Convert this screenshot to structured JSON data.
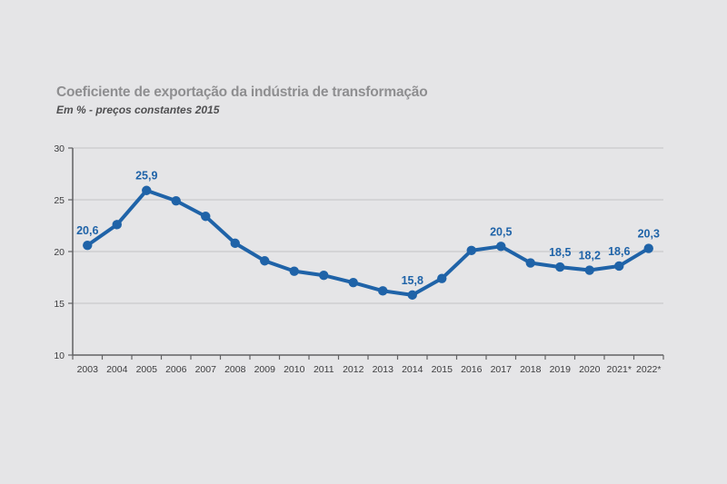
{
  "header": {
    "title": "Coeficiente de exportação da indústria de transformação",
    "subtitle": "Em % - preços constantes 2015"
  },
  "chart_data": {
    "type": "line",
    "title": "Coeficiente de exportação da indústria de transformação",
    "subtitle": "Em % - preços constantes 2015",
    "categories": [
      "2003",
      "2004",
      "2005",
      "2006",
      "2007",
      "2008",
      "2009",
      "2010",
      "2011",
      "2012",
      "2013",
      "2014",
      "2015",
      "2016",
      "2017",
      "2018",
      "2019",
      "2020",
      "2021*",
      "2022*"
    ],
    "values": [
      20.6,
      22.6,
      25.9,
      24.9,
      23.4,
      20.8,
      19.1,
      18.1,
      17.7,
      17.0,
      16.2,
      15.8,
      17.4,
      20.1,
      20.5,
      18.9,
      18.5,
      18.2,
      18.6,
      20.3
    ],
    "point_labels": [
      "20,6",
      null,
      "25,9",
      null,
      null,
      null,
      null,
      null,
      null,
      null,
      null,
      "15,8",
      null,
      null,
      "20,5",
      null,
      "18,5",
      "18,2",
      "18,6",
      "20,3"
    ],
    "xlabel": "",
    "ylabel": "",
    "ylim": [
      10,
      30
    ],
    "yticks": [
      10,
      15,
      20,
      25,
      30
    ],
    "grid": "horizontal",
    "legend": "none",
    "colors": {
      "line": "#1f63a8",
      "point": "#1f63a8",
      "point_label": "#1f63a8",
      "grid": "#c9c9cb",
      "axis": "#626264",
      "tick_label": "#3d3d3f",
      "background": "#e5e5e7",
      "title": "#8e8e90",
      "subtitle": "#4f4f51"
    }
  }
}
